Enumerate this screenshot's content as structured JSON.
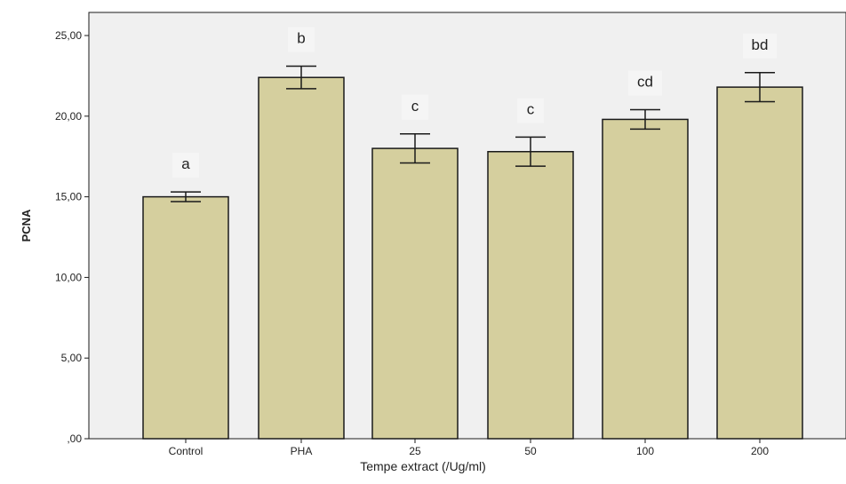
{
  "chart_data": {
    "type": "bar",
    "categories": [
      "Control",
      "PHA",
      "25",
      "50",
      "100",
      "200"
    ],
    "series": [
      {
        "values": [
          15.0,
          22.4,
          18.0,
          17.8,
          19.8,
          21.8
        ],
        "error_low": [
          14.7,
          21.7,
          17.1,
          16.9,
          19.2,
          20.9
        ],
        "error_high": [
          15.3,
          23.1,
          18.9,
          18.7,
          20.4,
          22.7
        ]
      }
    ],
    "annotations": [
      "a",
      "b",
      "c",
      "c",
      "cd",
      "bd"
    ],
    "xlabel": "Tempe extract (/Ug/ml)",
    "ylabel": "PCNA",
    "ylim": [
      0,
      25
    ],
    "yticks": [
      0,
      5,
      10,
      15,
      20,
      25
    ],
    "ytick_labels": [
      ",00",
      "5,00",
      "10,00",
      "15,00",
      "20,00",
      "25,00"
    ],
    "grid": false,
    "colors": {
      "plot_background": "#f0f0f0",
      "bar_fill": "#d5cf9e",
      "bar_stroke": "#1a1a1a",
      "annotation_box": "#f5f5f5"
    }
  }
}
